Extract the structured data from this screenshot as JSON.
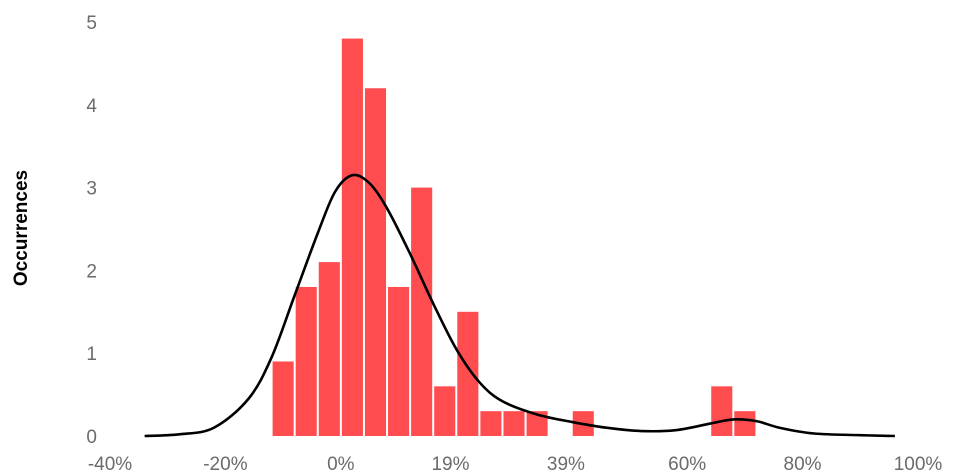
{
  "chart_data": {
    "type": "bar",
    "title": "",
    "xlabel": "",
    "ylabel": "Occurrences",
    "x_tick_labels": [
      "-40%",
      "-20%",
      "0%",
      "19%",
      "39%",
      "60%",
      "80%",
      "100%"
    ],
    "x_tick_values": [
      -40,
      -20,
      0,
      19,
      39,
      60,
      80,
      100
    ],
    "y_tick_labels": [
      "0",
      "1",
      "2",
      "3",
      "4",
      "5"
    ],
    "ylim": [
      0,
      5
    ],
    "xlim": [
      -40,
      100
    ],
    "grid": false,
    "legend": "none",
    "bin_width": 4,
    "bins": [
      {
        "start": -12,
        "end": -8,
        "count": 0.9
      },
      {
        "start": -8,
        "end": -4,
        "count": 1.8
      },
      {
        "start": -4,
        "end": 0,
        "count": 2.1
      },
      {
        "start": 0,
        "end": 4,
        "count": 4.8
      },
      {
        "start": 4,
        "end": 8,
        "count": 4.2
      },
      {
        "start": 8,
        "end": 12,
        "count": 1.8
      },
      {
        "start": 12,
        "end": 16,
        "count": 3.0
      },
      {
        "start": 16,
        "end": 20,
        "count": 0.6
      },
      {
        "start": 20,
        "end": 24,
        "count": 1.5
      },
      {
        "start": 24,
        "end": 28,
        "count": 0.3
      },
      {
        "start": 28,
        "end": 32,
        "count": 0.3
      },
      {
        "start": 32,
        "end": 36,
        "count": 0.3
      },
      {
        "start": 40,
        "end": 44,
        "count": 0.3
      },
      {
        "start": 64,
        "end": 68,
        "count": 0.6
      },
      {
        "start": 68,
        "end": 72,
        "count": 0.3
      }
    ],
    "density_curve": {
      "x": [
        -34,
        -28,
        -22,
        -16,
        -12,
        -8,
        -4,
        -1,
        2,
        5,
        8,
        12,
        16,
        20,
        24,
        28,
        34,
        40,
        46,
        52,
        58,
        64,
        68,
        72,
        76,
        82,
        90,
        96
      ],
      "y": [
        0.0,
        0.02,
        0.1,
        0.45,
        0.95,
        1.7,
        2.45,
        2.95,
        3.15,
        3.05,
        2.75,
        2.2,
        1.6,
        1.05,
        0.65,
        0.42,
        0.26,
        0.17,
        0.1,
        0.06,
        0.07,
        0.15,
        0.2,
        0.18,
        0.1,
        0.03,
        0.01,
        0.0
      ]
    },
    "colors": {
      "bar": "#ff4d4f",
      "curve": "#000000"
    }
  }
}
